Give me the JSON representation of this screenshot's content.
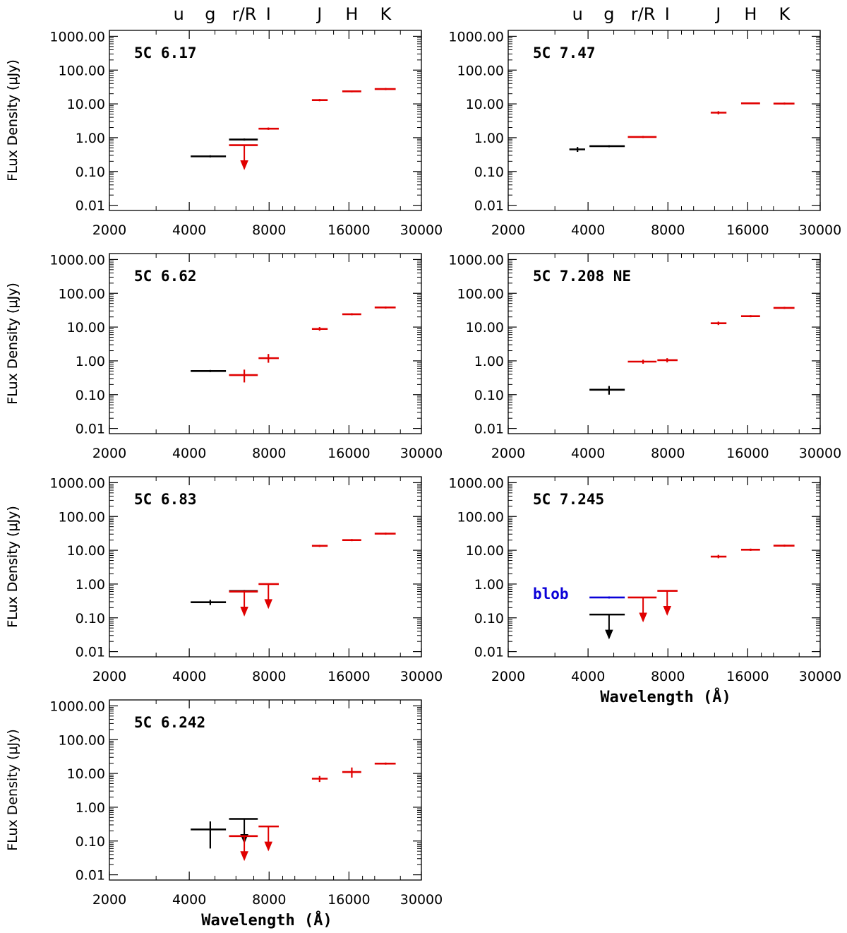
{
  "colors": {
    "optical": "#000000",
    "nir": "#e00000",
    "blob": "#0a00d8",
    "axis": "#000000"
  },
  "chart_data": {
    "type": "scatter",
    "axis_scale": "log-log",
    "common": {
      "xlim": [
        2000,
        30000
      ],
      "ylim": [
        0.01,
        1000
      ],
      "xticks": [
        "2000",
        "4000",
        "8000",
        "16000",
        "30000"
      ],
      "xtick_values": [
        2000,
        4000,
        8000,
        16000,
        30000
      ],
      "yticks": [
        "0.01",
        "0.10",
        "1.00",
        "10.00",
        "100.00",
        "1000.00"
      ],
      "ytick_values": [
        0.01,
        0.1,
        1,
        10,
        100,
        1000
      ],
      "ylabel": "FLux Density (μJy)",
      "xlabel": "Wavelength (Å)"
    },
    "bands": [
      {
        "name": "u",
        "wavelength": 3650
      },
      {
        "name": "g",
        "wavelength": 4800
      },
      {
        "name": "r/R",
        "wavelength": 6450
      },
      {
        "name": "I",
        "wavelength": 7950
      },
      {
        "name": "J",
        "wavelength": 12400
      },
      {
        "name": "H",
        "wavelength": 16400
      },
      {
        "name": "K",
        "wavelength": 22000
      }
    ],
    "panels": [
      {
        "title": "5C 6.17",
        "show_xlabel": false,
        "points": [
          {
            "x": 4800,
            "xlo": 4050,
            "xhi": 5500,
            "y": 0.28,
            "color": "optical"
          },
          {
            "x": 6450,
            "xlo": 5650,
            "xhi": 7250,
            "y": 0.88,
            "color": "optical"
          },
          {
            "x": 6450,
            "xlo": 5650,
            "xhi": 7250,
            "y": 0.6,
            "color": "nir",
            "upper_limit": true
          },
          {
            "x": 7950,
            "xlo": 7300,
            "xhi": 8700,
            "y": 1.85,
            "ylo": 1.7,
            "yhi": 2.0,
            "color": "nir"
          },
          {
            "x": 12400,
            "xlo": 11600,
            "xhi": 13300,
            "y": 13.0,
            "ylo": 12.0,
            "yhi": 14.0,
            "color": "nir"
          },
          {
            "x": 16400,
            "xlo": 15100,
            "xhi": 17800,
            "y": 23.5,
            "ylo": 22.0,
            "yhi": 25.0,
            "color": "nir"
          },
          {
            "x": 22000,
            "xlo": 20000,
            "xhi": 24000,
            "y": 27.5,
            "color": "nir"
          }
        ]
      },
      {
        "title": "5C 7.47",
        "show_xlabel": false,
        "points": [
          {
            "x": 3650,
            "xlo": 3400,
            "xhi": 3900,
            "y": 0.45,
            "ylo": 0.38,
            "yhi": 0.53,
            "color": "optical"
          },
          {
            "x": 4800,
            "xlo": 4050,
            "xhi": 5500,
            "y": 0.56,
            "color": "optical"
          },
          {
            "x": 6450,
            "xlo": 5650,
            "xhi": 7250,
            "y": 1.05,
            "color": "nir"
          },
          {
            "x": 12400,
            "xlo": 11600,
            "xhi": 13300,
            "y": 5.5,
            "ylo": 4.9,
            "yhi": 6.1,
            "color": "nir"
          },
          {
            "x": 16400,
            "xlo": 15100,
            "xhi": 17800,
            "y": 10.4,
            "ylo": 9.8,
            "yhi": 11.0,
            "color": "nir"
          },
          {
            "x": 22000,
            "xlo": 20000,
            "xhi": 24000,
            "y": 10.2,
            "color": "nir"
          }
        ]
      },
      {
        "title": "5C 6.62",
        "show_xlabel": false,
        "points": [
          {
            "x": 4800,
            "xlo": 4050,
            "xhi": 5500,
            "y": 0.5,
            "color": "optical"
          },
          {
            "x": 6450,
            "xlo": 5650,
            "xhi": 7250,
            "y": 0.38,
            "ylo": 0.23,
            "yhi": 0.55,
            "color": "nir"
          },
          {
            "x": 7950,
            "xlo": 7300,
            "xhi": 8700,
            "y": 1.2,
            "ylo": 0.88,
            "yhi": 1.6,
            "color": "nir"
          },
          {
            "x": 12400,
            "xlo": 11600,
            "xhi": 13300,
            "y": 8.8,
            "ylo": 7.8,
            "yhi": 10.0,
            "color": "nir"
          },
          {
            "x": 16400,
            "xlo": 15100,
            "xhi": 17800,
            "y": 24.0,
            "color": "nir"
          },
          {
            "x": 22000,
            "xlo": 20000,
            "xhi": 24000,
            "y": 38.0,
            "color": "nir"
          }
        ]
      },
      {
        "title": "5C 7.208 NE",
        "show_xlabel": false,
        "points": [
          {
            "x": 4800,
            "xlo": 4050,
            "xhi": 5500,
            "y": 0.14,
            "ylo": 0.1,
            "yhi": 0.18,
            "color": "optical"
          },
          {
            "x": 6450,
            "xlo": 5650,
            "xhi": 7250,
            "y": 0.95,
            "ylo": 0.82,
            "yhi": 1.08,
            "color": "nir"
          },
          {
            "x": 7950,
            "xlo": 7300,
            "xhi": 8700,
            "y": 1.05,
            "ylo": 0.9,
            "yhi": 1.2,
            "color": "nir"
          },
          {
            "x": 12400,
            "xlo": 11600,
            "xhi": 13300,
            "y": 13.0,
            "ylo": 11.5,
            "yhi": 14.5,
            "color": "nir"
          },
          {
            "x": 16400,
            "xlo": 15100,
            "xhi": 17800,
            "y": 21.0,
            "color": "nir"
          },
          {
            "x": 22000,
            "xlo": 20000,
            "xhi": 24000,
            "y": 37.0,
            "color": "nir"
          }
        ]
      },
      {
        "title": "5C 6.83",
        "show_xlabel": false,
        "points": [
          {
            "x": 4800,
            "xlo": 4050,
            "xhi": 5500,
            "y": 0.29,
            "ylo": 0.24,
            "yhi": 0.34,
            "color": "optical"
          },
          {
            "x": 6450,
            "xlo": 5650,
            "xhi": 7250,
            "y": 0.62,
            "color": "optical"
          },
          {
            "x": 6450,
            "xlo": 5650,
            "xhi": 7250,
            "y": 0.6,
            "color": "nir",
            "upper_limit": true
          },
          {
            "x": 7950,
            "xlo": 7300,
            "xhi": 8700,
            "y": 1.0,
            "color": "nir",
            "upper_limit": true
          },
          {
            "x": 12400,
            "xlo": 11600,
            "xhi": 13300,
            "y": 13.5,
            "ylo": 12.5,
            "yhi": 14.5,
            "color": "nir"
          },
          {
            "x": 16400,
            "xlo": 15100,
            "xhi": 17800,
            "y": 20.0,
            "color": "nir"
          },
          {
            "x": 22000,
            "xlo": 20000,
            "xhi": 24000,
            "y": 31.0,
            "color": "nir"
          }
        ]
      },
      {
        "title": "5C 7.245",
        "show_xlabel": true,
        "annotation": "blob",
        "points": [
          {
            "x": 4800,
            "xlo": 4050,
            "xhi": 5500,
            "y": 0.4,
            "color": "blob"
          },
          {
            "x": 4800,
            "xlo": 4050,
            "xhi": 5500,
            "y": 0.125,
            "color": "optical",
            "upper_limit": true
          },
          {
            "x": 6450,
            "xlo": 5650,
            "xhi": 7250,
            "y": 0.4,
            "color": "nir",
            "upper_limit": true
          },
          {
            "x": 7950,
            "xlo": 7300,
            "xhi": 8700,
            "y": 0.63,
            "color": "nir",
            "upper_limit": true
          },
          {
            "x": 12400,
            "xlo": 11600,
            "xhi": 13300,
            "y": 6.5,
            "ylo": 5.8,
            "yhi": 7.3,
            "color": "nir"
          },
          {
            "x": 16400,
            "xlo": 15100,
            "xhi": 17800,
            "y": 10.4,
            "ylo": 9.6,
            "yhi": 11.2,
            "color": "nir"
          },
          {
            "x": 22000,
            "xlo": 20000,
            "xhi": 24000,
            "y": 13.7,
            "color": "nir"
          }
        ]
      },
      {
        "title": "5C 6.242",
        "show_xlabel": true,
        "points": [
          {
            "x": 4800,
            "xlo": 4050,
            "xhi": 5500,
            "y": 0.22,
            "ylo": 0.06,
            "yhi": 0.38,
            "color": "optical"
          },
          {
            "x": 6450,
            "xlo": 5650,
            "xhi": 7250,
            "y": 0.45,
            "color": "optical",
            "upper_limit": true
          },
          {
            "x": 6450,
            "xlo": 5650,
            "xhi": 7250,
            "y": 0.14,
            "color": "nir",
            "upper_limit": true
          },
          {
            "x": 7950,
            "xlo": 7300,
            "xhi": 8700,
            "y": 0.27,
            "color": "nir",
            "upper_limit": true
          },
          {
            "x": 12400,
            "xlo": 11600,
            "xhi": 13300,
            "y": 7.0,
            "ylo": 5.6,
            "yhi": 8.4,
            "color": "nir"
          },
          {
            "x": 16400,
            "xlo": 15100,
            "xhi": 17800,
            "y": 11.0,
            "ylo": 7.5,
            "yhi": 15.0,
            "color": "nir"
          },
          {
            "x": 22000,
            "xlo": 20000,
            "xhi": 24000,
            "y": 19.5,
            "color": "nir"
          }
        ]
      }
    ]
  }
}
